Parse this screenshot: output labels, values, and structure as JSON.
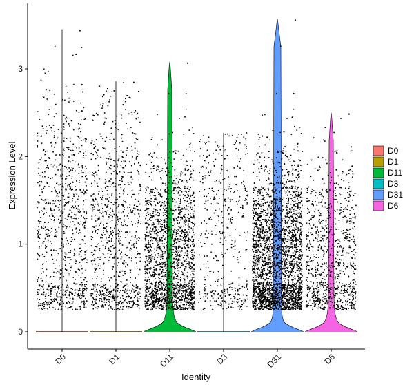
{
  "chart_data": {
    "type": "violin",
    "title": "",
    "xlabel": "Identity",
    "ylabel": "Expression Level",
    "ylim": [
      -0.18,
      3.6
    ],
    "y_ticks": [
      0,
      1,
      2,
      3
    ],
    "categories": [
      "D0",
      "D1",
      "D11",
      "D3",
      "D31",
      "D6"
    ],
    "legend_position": "right",
    "grid": false,
    "points_jittered": true,
    "series": [
      {
        "name": "D0",
        "color": "#F8766D",
        "max": 3.45,
        "zero_fraction": 0.82,
        "violin": "flat",
        "point_density": "medium"
      },
      {
        "name": "D1",
        "color": "#B79F00",
        "max": 2.86,
        "zero_fraction": 0.78,
        "violin": "flat",
        "point_density": "medium"
      },
      {
        "name": "D11",
        "color": "#00BA38",
        "max": 3.08,
        "zero_fraction": 0.55,
        "violin": "spiked",
        "point_density": "high"
      },
      {
        "name": "D3",
        "color": "#00BFC4",
        "max": 2.27,
        "zero_fraction": 0.85,
        "violin": "flat",
        "point_density": "low"
      },
      {
        "name": "D31",
        "color": "#619CFF",
        "max": 3.57,
        "zero_fraction": 0.5,
        "violin": "spiked",
        "point_density": "very-high"
      },
      {
        "name": "D6",
        "color": "#F564E3",
        "max": 2.5,
        "zero_fraction": 0.65,
        "violin": "spiked",
        "point_density": "medium"
      }
    ]
  }
}
